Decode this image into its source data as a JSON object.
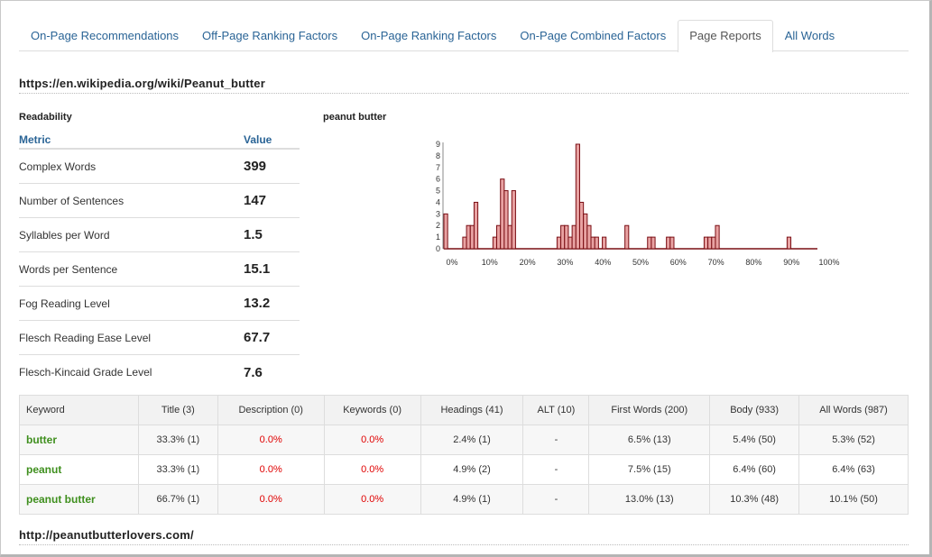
{
  "tabs": [
    {
      "label": "On-Page Recommendations",
      "active": false
    },
    {
      "label": "Off-Page Ranking Factors",
      "active": false
    },
    {
      "label": "On-Page Ranking Factors",
      "active": false
    },
    {
      "label": "On-Page Combined Factors",
      "active": false
    },
    {
      "label": "Page Reports",
      "active": true
    },
    {
      "label": "All Words",
      "active": false
    }
  ],
  "report": {
    "url": "https://en.wikipedia.org/wiki/Peanut_butter",
    "readability": {
      "title": "Readability",
      "col_metric": "Metric",
      "col_value": "Value",
      "rows": [
        {
          "metric": "Complex Words",
          "value": "399"
        },
        {
          "metric": "Number of Sentences",
          "value": "147"
        },
        {
          "metric": "Syllables per Word",
          "value": "1.5"
        },
        {
          "metric": "Words per Sentence",
          "value": "15.1"
        },
        {
          "metric": "Fog Reading Level",
          "value": "13.2"
        },
        {
          "metric": "Flesch Reading Ease Level",
          "value": "67.7"
        },
        {
          "metric": "Flesch-Kincaid Grade Level",
          "value": "7.6"
        }
      ]
    },
    "chart_title": "peanut butter"
  },
  "chart_data": {
    "type": "bar",
    "title": "peanut butter",
    "xlabel": "",
    "ylabel": "",
    "xlim": [
      0,
      100
    ],
    "ylim": [
      0,
      9
    ],
    "x_ticks": [
      "0%",
      "10%",
      "20%",
      "30%",
      "40%",
      "50%",
      "60%",
      "70%",
      "80%",
      "90%",
      "100%"
    ],
    "y_ticks": [
      "0",
      "1",
      "2",
      "3",
      "4",
      "5",
      "6",
      "7",
      "8",
      "9"
    ],
    "bars": [
      {
        "x": 0.5,
        "y": 3
      },
      {
        "x": 5.5,
        "y": 1
      },
      {
        "x": 6.5,
        "y": 2
      },
      {
        "x": 7.5,
        "y": 2
      },
      {
        "x": 8.5,
        "y": 4
      },
      {
        "x": 13.5,
        "y": 1
      },
      {
        "x": 14.5,
        "y": 2
      },
      {
        "x": 15.5,
        "y": 6
      },
      {
        "x": 16.5,
        "y": 5
      },
      {
        "x": 17.5,
        "y": 2
      },
      {
        "x": 18.5,
        "y": 5
      },
      {
        "x": 30.5,
        "y": 1
      },
      {
        "x": 31.5,
        "y": 2
      },
      {
        "x": 32.5,
        "y": 2
      },
      {
        "x": 33.5,
        "y": 1
      },
      {
        "x": 34.5,
        "y": 2
      },
      {
        "x": 35.5,
        "y": 9
      },
      {
        "x": 36.5,
        "y": 4
      },
      {
        "x": 37.5,
        "y": 3
      },
      {
        "x": 38.5,
        "y": 2
      },
      {
        "x": 39.5,
        "y": 1
      },
      {
        "x": 40.5,
        "y": 1
      },
      {
        "x": 42.5,
        "y": 1
      },
      {
        "x": 48.5,
        "y": 2
      },
      {
        "x": 54.5,
        "y": 1
      },
      {
        "x": 55.5,
        "y": 1
      },
      {
        "x": 59.5,
        "y": 1
      },
      {
        "x": 60.5,
        "y": 1
      },
      {
        "x": 69.5,
        "y": 1
      },
      {
        "x": 70.5,
        "y": 1
      },
      {
        "x": 71.5,
        "y": 1
      },
      {
        "x": 72.5,
        "y": 2
      },
      {
        "x": 91.5,
        "y": 1
      }
    ]
  },
  "keywords": {
    "columns": [
      "Keyword",
      "Title (3)",
      "Description (0)",
      "Keywords (0)",
      "Headings (41)",
      "ALT (10)",
      "First Words (200)",
      "Body (933)",
      "All Words (987)"
    ],
    "rows": [
      {
        "keyword": "butter",
        "cells": [
          "33.3% (1)",
          "0.0%",
          "0.0%",
          "2.4% (1)",
          "-",
          "6.5% (13)",
          "5.4% (50)",
          "5.3% (52)"
        ]
      },
      {
        "keyword": "peanut",
        "cells": [
          "33.3% (1)",
          "0.0%",
          "0.0%",
          "4.9% (2)",
          "-",
          "7.5% (15)",
          "6.4% (60)",
          "6.4% (63)"
        ]
      },
      {
        "keyword": "peanut butter",
        "cells": [
          "66.7% (1)",
          "0.0%",
          "0.0%",
          "4.9% (1)",
          "-",
          "13.0% (13)",
          "10.3% (48)",
          "10.1% (50)"
        ]
      }
    ]
  },
  "next_report": {
    "url": "http://peanutbutterlovers.com/"
  }
}
